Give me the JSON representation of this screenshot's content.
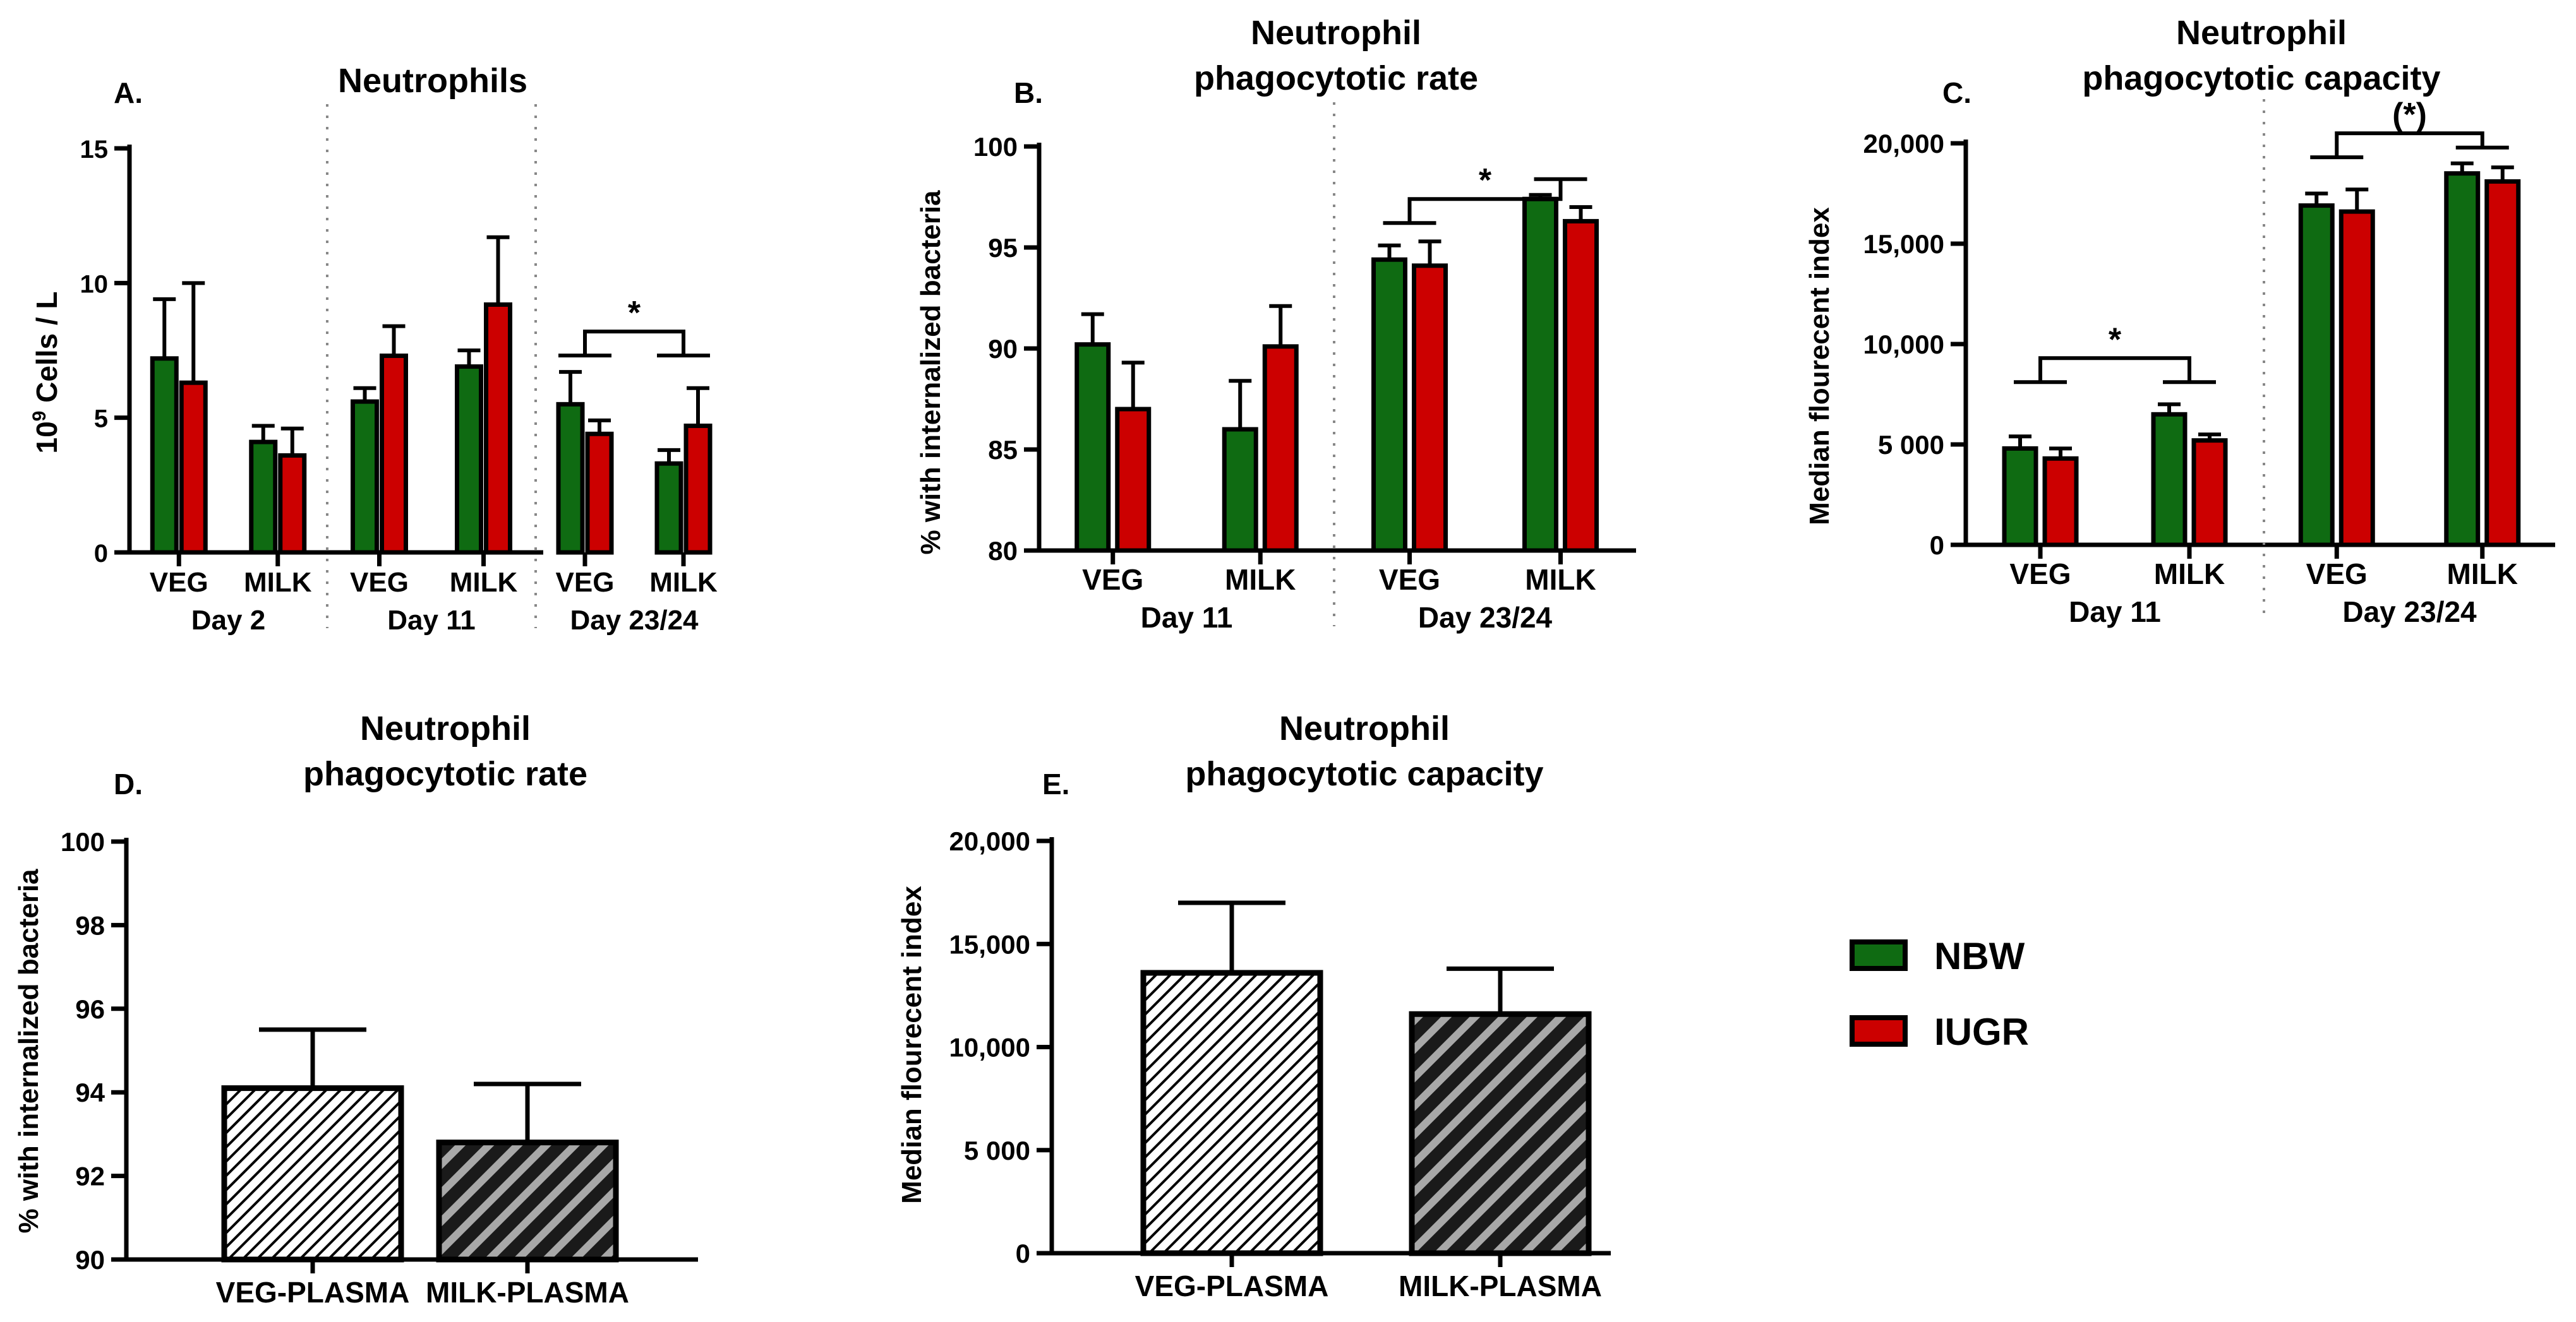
{
  "colors": {
    "nbw": "#0f6b12",
    "iugr": "#cc0000",
    "axis": "#000000"
  },
  "legend": {
    "items": [
      {
        "label": "NBW",
        "color": "#0f6b12"
      },
      {
        "label": "IUGR",
        "color": "#cc0000"
      }
    ]
  },
  "chart_data": [
    {
      "id": "A",
      "panel_label": "A.",
      "type": "bar",
      "title_lines": [
        "Neutrophils"
      ],
      "ylabel_base": "10",
      "ylabel_sup": "9",
      "ylabel_rest": " Cells / L",
      "ylim": [
        0,
        15
      ],
      "yticks": [
        0,
        5,
        10,
        15
      ],
      "ytick_labels": [
        "0",
        "5",
        "10",
        "15"
      ],
      "series_names": [
        "NBW",
        "IUGR"
      ],
      "groups": [
        {
          "label": "Day 2",
          "categories": [
            {
              "label": "VEG",
              "values": [
                7.2,
                6.3
              ],
              "errors": [
                2.2,
                3.7
              ]
            },
            {
              "label": "MILK",
              "values": [
                4.1,
                3.6
              ],
              "errors": [
                0.6,
                1.0
              ]
            }
          ]
        },
        {
          "label": "Day 11",
          "categories": [
            {
              "label": "VEG",
              "values": [
                5.6,
                7.3
              ],
              "errors": [
                0.5,
                1.1
              ]
            },
            {
              "label": "MILK",
              "values": [
                6.9,
                9.2
              ],
              "errors": [
                0.6,
                2.5
              ]
            }
          ]
        },
        {
          "label": "Day 23/24",
          "categories": [
            {
              "label": "VEG",
              "values": [
                5.5,
                4.4
              ],
              "errors": [
                1.2,
                0.5
              ]
            },
            {
              "label": "MILK",
              "values": [
                3.3,
                4.7
              ],
              "errors": [
                0.5,
                1.4
              ]
            }
          ]
        }
      ],
      "annotations": [
        {
          "group": 2,
          "value": 8.2,
          "text": "*"
        }
      ]
    },
    {
      "id": "B",
      "panel_label": "B.",
      "type": "bar",
      "title_lines": [
        "Neutrophil",
        "phagocytotic rate"
      ],
      "ylabel": "% with internalized bacteria",
      "ylim": [
        80,
        100
      ],
      "yticks": [
        80,
        85,
        90,
        95,
        100
      ],
      "ytick_labels": [
        "80",
        "85",
        "90",
        "95",
        "100"
      ],
      "series_names": [
        "NBW",
        "IUGR"
      ],
      "groups": [
        {
          "label": "Day 11",
          "categories": [
            {
              "label": "VEG",
              "values": [
                90.2,
                87.0
              ],
              "errors": [
                1.5,
                2.3
              ]
            },
            {
              "label": "MILK",
              "values": [
                86.0,
                90.1
              ],
              "errors": [
                2.4,
                2.0
              ]
            }
          ]
        },
        {
          "label": "Day 23/24",
          "categories": [
            {
              "label": "VEG",
              "values": [
                94.4,
                94.1
              ],
              "errors": [
                0.7,
                1.2
              ]
            },
            {
              "label": "MILK",
              "values": [
                97.4,
                96.3
              ],
              "errors": [
                0.2,
                0.7
              ]
            }
          ]
        }
      ],
      "annotations": [
        {
          "group": 1,
          "value": 97.4,
          "text": "*"
        }
      ]
    },
    {
      "id": "C",
      "panel_label": "C.",
      "type": "bar",
      "title_lines": [
        "Neutrophil",
        "phagocytotic capacity"
      ],
      "ylabel": "Median flourecent index",
      "ylim": [
        0,
        20000
      ],
      "yticks": [
        0,
        5000,
        10000,
        15000,
        20000
      ],
      "ytick_labels": [
        "0",
        "5 000",
        "10,000",
        "15,000",
        "20,000"
      ],
      "series_names": [
        "NBW",
        "IUGR"
      ],
      "groups": [
        {
          "label": "Day 11",
          "categories": [
            {
              "label": "VEG",
              "values": [
                4800,
                4300
              ],
              "errors": [
                600,
                500
              ]
            },
            {
              "label": "MILK",
              "values": [
                6500,
                5200
              ],
              "errors": [
                500,
                300
              ]
            }
          ]
        },
        {
          "label": "Day 23/24",
          "categories": [
            {
              "label": "VEG",
              "values": [
                16900,
                16600
              ],
              "errors": [
                600,
                1100
              ]
            },
            {
              "label": "MILK",
              "values": [
                18500,
                18100
              ],
              "errors": [
                500,
                700
              ]
            }
          ]
        }
      ],
      "annotations": [
        {
          "group": 0,
          "value": 9300,
          "text": "*"
        },
        {
          "group": 1,
          "value": 20500,
          "text": "(*)"
        }
      ]
    },
    {
      "id": "D",
      "panel_label": "D.",
      "type": "bar",
      "title_lines": [
        "Neutrophil",
        "phagocytotic rate"
      ],
      "ylabel": "% with internalized bacteria",
      "ylim": [
        90,
        100
      ],
      "yticks": [
        90,
        92,
        94,
        96,
        98,
        100
      ],
      "ytick_labels": [
        "90",
        "92",
        "94",
        "96",
        "98",
        "100"
      ],
      "categories": [
        "VEG-PLASMA",
        "MILK-PLASMA"
      ],
      "values": [
        94.1,
        92.8
      ],
      "errors": [
        1.4,
        1.4
      ],
      "patterns": [
        "light",
        "dark"
      ]
    },
    {
      "id": "E",
      "panel_label": "E.",
      "type": "bar",
      "title_lines": [
        "Neutrophil",
        "phagocytotic capacity"
      ],
      "ylabel": "Median flourecent index",
      "ylim": [
        0,
        20000
      ],
      "yticks": [
        0,
        5000,
        10000,
        15000,
        20000
      ],
      "ytick_labels": [
        "0",
        "5 000",
        "10,000",
        "15,000",
        "20,000"
      ],
      "categories": [
        "VEG-PLASMA",
        "MILK-PLASMA"
      ],
      "values": [
        13600,
        11600
      ],
      "errors": [
        3400,
        2200
      ],
      "patterns": [
        "light",
        "dark"
      ]
    }
  ]
}
